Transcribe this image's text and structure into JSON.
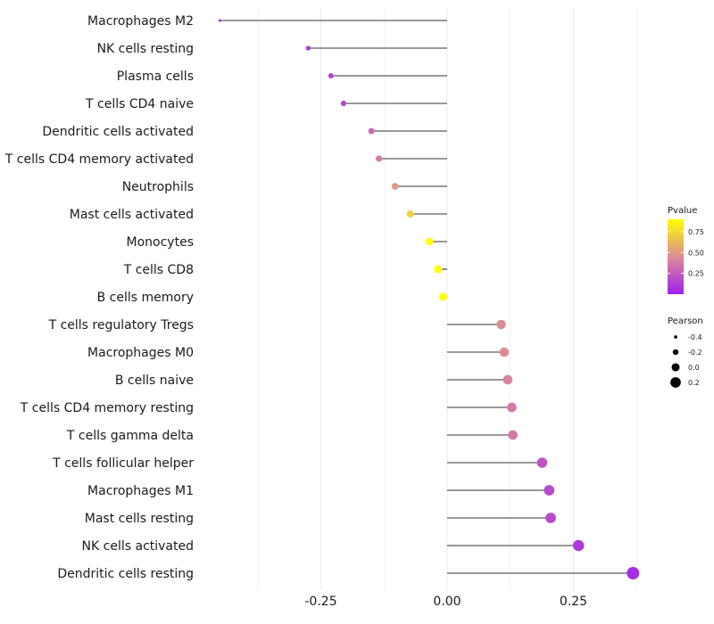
{
  "chart_data": {
    "type": "lollipop",
    "orientation": "horizontal",
    "categories": [
      "Macrophages M2",
      "NK cells resting",
      "Plasma cells",
      "T cells CD4 naive",
      "Dendritic cells activated",
      "T cells CD4 memory activated",
      "Neutrophils",
      "Mast cells activated",
      "Monocytes",
      "T cells CD8",
      "B cells memory",
      "T cells regulatory  Tregs ",
      "Macrophages M0",
      "B cells naive",
      "T cells CD4 memory resting",
      "T cells gamma delta",
      "T cells follicular helper",
      "Macrophages M1",
      "Mast cells resting",
      "NK cells activated",
      "Dendritic cells resting"
    ],
    "pearson": [
      -0.45,
      -0.275,
      -0.23,
      -0.205,
      -0.15,
      -0.135,
      -0.103,
      -0.073,
      -0.035,
      -0.018,
      -0.008,
      0.107,
      0.113,
      0.12,
      0.128,
      0.13,
      0.188,
      0.202,
      0.205,
      0.26,
      0.368
    ],
    "pvalue": [
      0.02,
      0.1,
      0.15,
      0.18,
      0.3,
      0.38,
      0.5,
      0.72,
      0.9,
      0.97,
      0.99,
      0.45,
      0.45,
      0.42,
      0.38,
      0.37,
      0.22,
      0.18,
      0.17,
      0.1,
      0.05
    ],
    "xticks": [
      -0.25,
      0.0,
      0.25
    ],
    "xtick_labels": [
      "-0.25",
      "0.00",
      "0.25"
    ],
    "xlim": [
      -0.5,
      0.41
    ],
    "xlabel": "",
    "ylabel": "",
    "legend_color": {
      "title": "Pvalue",
      "ticks": [
        0.25,
        0.5,
        0.75
      ],
      "tick_labels": [
        "0.25",
        "0.50",
        "0.75"
      ],
      "range": [
        0.0,
        0.9
      ],
      "low_color": "#a020f0",
      "mid_color": "#dc8c96",
      "high_color": "#ffff00"
    },
    "legend_size": {
      "title": "Pearson",
      "values": [
        -0.4,
        -0.2,
        0.0,
        0.2
      ],
      "labels": [
        "-0.4",
        "-0.2",
        "0.0",
        "0.2"
      ]
    },
    "legend_position": "right",
    "grid": true
  }
}
